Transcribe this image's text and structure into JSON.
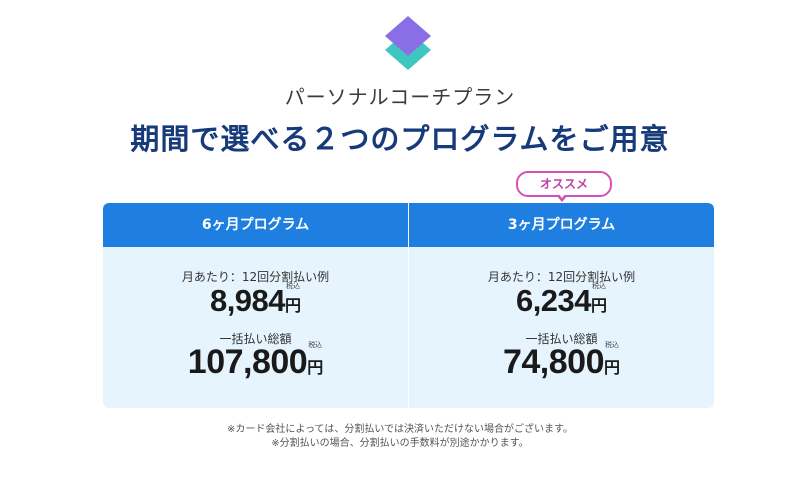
{
  "subtitle": "パーソナルコーチプラン",
  "headline": "期間で選べる２つのプログラムをご用意",
  "badge": "オススメ",
  "plans": [
    {
      "name": "6ヶ月プログラム",
      "monthly_label": "月あたり：12回分割払い例",
      "monthly_price": "8,984",
      "lump_label": "一括払い総額",
      "lump_price": "107,800",
      "currency": "円",
      "tax_label": "税込"
    },
    {
      "name": "3ヶ月プログラム",
      "monthly_label": "月あたり：12回分割払い例",
      "monthly_price": "6,234",
      "lump_label": "一括払い総額",
      "lump_price": "74,800",
      "currency": "円",
      "tax_label": "税込"
    }
  ],
  "footnotes": [
    "※カード会社によっては、分割払いでは決済いただけない場合がございます。",
    "※分割払いの場合、分割払いの手数料が別途かかります。"
  ],
  "colors": {
    "header_blue": "#1f7fe0",
    "headline_navy": "#163a7a",
    "badge_pink": "#d64fb6",
    "panel_bg": "#e6f4fd",
    "logo_purple": "#8a6ee8",
    "logo_teal": "#3ec7c0"
  }
}
